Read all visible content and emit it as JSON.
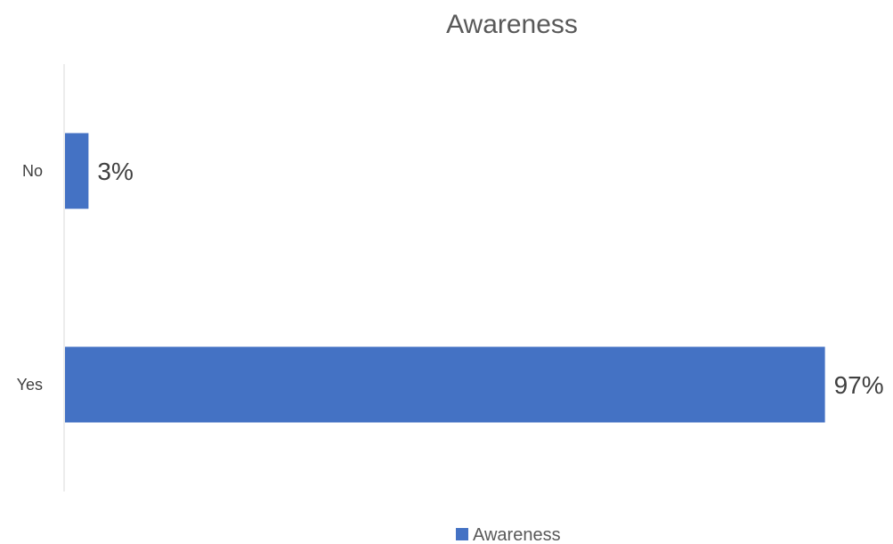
{
  "chart_data": {
    "type": "bar",
    "orientation": "horizontal",
    "title": "Awareness",
    "categories": [
      "No",
      "Yes"
    ],
    "series": [
      {
        "name": "Awareness",
        "values": [
          3,
          97
        ],
        "data_labels": [
          "3%",
          "97%"
        ],
        "color": "#4472C4"
      }
    ],
    "xlim": [
      0,
      100
    ],
    "grid": false,
    "legend": "bottom"
  }
}
